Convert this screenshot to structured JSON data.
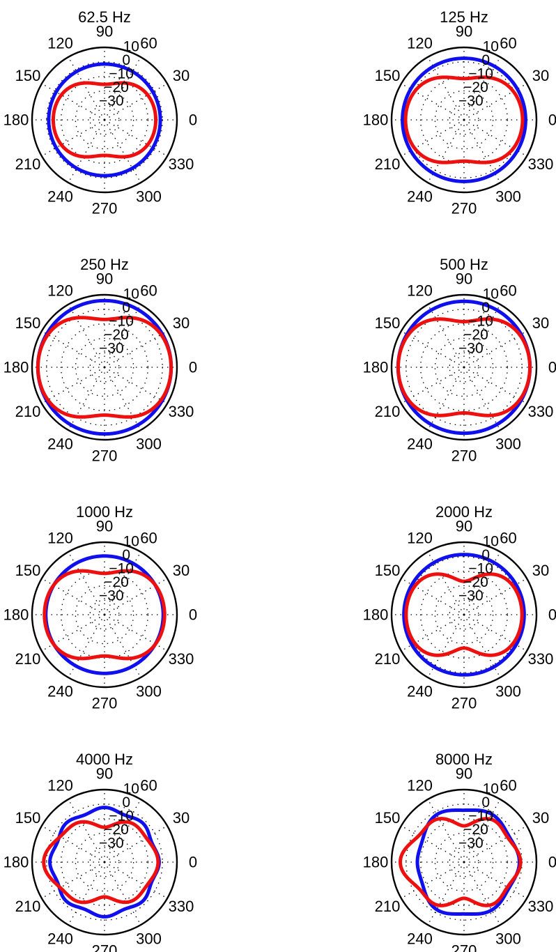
{
  "chart_data": [
    {
      "type": "polar",
      "title": "62.5 Hz",
      "angle_ticks_deg": [
        0,
        30,
        60,
        90,
        120,
        150,
        180,
        210,
        240,
        270,
        300,
        330
      ],
      "radial_ticks": [
        "10",
        "0",
        "−10",
        "−20",
        "−30"
      ],
      "rlim": [
        -40,
        10
      ],
      "grid": true,
      "series": [
        {
          "color": "#1010ee",
          "level": -1.5,
          "dip": 0,
          "dip_width": 30,
          "lobe": 0,
          "lobe_angle": 180,
          "lobe_width": 40,
          "ripple": 0,
          "ripple_order": 8
        },
        {
          "color": "#ee0f0f",
          "level": -4.5,
          "dip": 11,
          "dip_width": 28,
          "lobe": 0,
          "lobe_angle": 180,
          "lobe_width": 40,
          "ripple": 0,
          "ripple_order": 8
        }
      ]
    },
    {
      "type": "polar",
      "title": "125 Hz",
      "angle_ticks_deg": [
        0,
        30,
        60,
        90,
        120,
        150,
        180,
        210,
        240,
        270,
        300,
        330
      ],
      "radial_ticks": [
        "10",
        "0",
        "−10",
        "−20",
        "−30"
      ],
      "rlim": [
        -40,
        10
      ],
      "grid": true,
      "series": [
        {
          "color": "#1010ee",
          "level": 2.5,
          "dip": 0,
          "dip_width": 30,
          "lobe": 0,
          "lobe_angle": 180,
          "lobe_width": 40,
          "ripple": 0,
          "ripple_order": 8
        },
        {
          "color": "#ee0f0f",
          "level": 0.5,
          "dip": 12,
          "dip_width": 28,
          "lobe": 0,
          "lobe_angle": 180,
          "lobe_width": 40,
          "ripple": 0,
          "ripple_order": 8
        }
      ]
    },
    {
      "type": "polar",
      "title": "250 Hz",
      "angle_ticks_deg": [
        0,
        30,
        60,
        90,
        120,
        150,
        180,
        210,
        240,
        270,
        300,
        330
      ],
      "radial_ticks": [
        "10",
        "0",
        "−10",
        "−20",
        "−30"
      ],
      "rlim": [
        -40,
        10
      ],
      "grid": true,
      "series": [
        {
          "color": "#1010ee",
          "level": 6,
          "dip": 0,
          "dip_width": 30,
          "lobe": 0,
          "lobe_angle": 180,
          "lobe_width": 40,
          "ripple": 0,
          "ripple_order": 8
        },
        {
          "color": "#ee0f0f",
          "level": 6,
          "dip": 13,
          "dip_width": 26,
          "lobe": 0,
          "lobe_angle": 180,
          "lobe_width": 40,
          "ripple": 0,
          "ripple_order": 8
        }
      ]
    },
    {
      "type": "polar",
      "title": "500 Hz",
      "angle_ticks_deg": [
        0,
        30,
        60,
        90,
        120,
        150,
        180,
        210,
        240,
        270,
        300,
        330
      ],
      "radial_ticks": [
        "10",
        "0",
        "−10",
        "−20",
        "−30"
      ],
      "rlim": [
        -40,
        10
      ],
      "grid": true,
      "series": [
        {
          "color": "#1010ee",
          "level": 5.5,
          "dip": 0,
          "dip_width": 30,
          "lobe": 0,
          "lobe_angle": 180,
          "lobe_width": 40,
          "ripple": 0,
          "ripple_order": 8
        },
        {
          "color": "#ee0f0f",
          "level": 5.5,
          "dip": 14,
          "dip_width": 26,
          "lobe": 0,
          "lobe_angle": 180,
          "lobe_width": 40,
          "ripple": 0,
          "ripple_order": 8
        }
      ]
    },
    {
      "type": "polar",
      "title": "1000 Hz",
      "angle_ticks_deg": [
        0,
        30,
        60,
        90,
        120,
        150,
        180,
        210,
        240,
        270,
        300,
        330
      ],
      "radial_ticks": [
        "10",
        "0",
        "−10",
        "−20",
        "−30"
      ],
      "rlim": [
        -40,
        10
      ],
      "grid": true,
      "series": [
        {
          "color": "#1010ee",
          "level": 0.5,
          "dip": 0,
          "dip_width": 30,
          "lobe": 0,
          "lobe_angle": 180,
          "lobe_width": 40,
          "ripple": 0,
          "ripple_order": 8
        },
        {
          "color": "#ee0f0f",
          "level": 1.5,
          "dip": 13,
          "dip_width": 26,
          "lobe": 0,
          "lobe_angle": 180,
          "lobe_width": 40,
          "ripple": 0,
          "ripple_order": 8
        }
      ]
    },
    {
      "type": "polar",
      "title": "2000 Hz",
      "angle_ticks_deg": [
        0,
        30,
        60,
        90,
        120,
        150,
        180,
        210,
        240,
        270,
        300,
        330
      ],
      "radial_ticks": [
        "10",
        "0",
        "−10",
        "−20",
        "−30"
      ],
      "rlim": [
        -40,
        10
      ],
      "grid": true,
      "series": [
        {
          "color": "#1010ee",
          "level": 1.5,
          "dip": 0,
          "dip_width": 30,
          "lobe": 0,
          "lobe_angle": 180,
          "lobe_width": 40,
          "ripple": 0,
          "ripple_order": 8
        },
        {
          "color": "#ee0f0f",
          "level": 0,
          "dip": 17,
          "dip_width": 24,
          "lobe": 0,
          "lobe_angle": 180,
          "lobe_width": 40,
          "ripple": 0,
          "ripple_order": 8
        }
      ]
    },
    {
      "type": "polar",
      "title": "4000 Hz",
      "angle_ticks_deg": [
        0,
        30,
        60,
        90,
        120,
        150,
        180,
        210,
        240,
        270,
        300,
        330
      ],
      "radial_ticks": [
        "10",
        "0",
        "−10",
        "−20",
        "−30"
      ],
      "rlim": [
        -40,
        10
      ],
      "grid": true,
      "series": [
        {
          "color": "#1010ee",
          "level": -3.5,
          "dip": 0,
          "dip_width": 30,
          "lobe": 0,
          "lobe_angle": 180,
          "lobe_width": 40,
          "ripple": 1.2,
          "ripple_order": 8
        },
        {
          "color": "#ee0f0f",
          "level": -4.5,
          "dip": 10,
          "dip_width": 26,
          "lobe": 5,
          "lobe_angle": 180,
          "lobe_width": 22,
          "ripple": 1.5,
          "ripple_order": 6
        }
      ]
    },
    {
      "type": "polar",
      "title": "8000 Hz",
      "angle_ticks_deg": [
        0,
        30,
        60,
        90,
        120,
        150,
        180,
        210,
        240,
        270,
        300,
        330
      ],
      "radial_ticks": [
        "10",
        "0",
        "−10",
        "−20",
        "−30"
      ],
      "rlim": [
        -40,
        10
      ],
      "grid": true,
      "series": [
        {
          "color": "#1010ee",
          "level": -3,
          "dip": 0,
          "dip_width": 30,
          "lobe": -6,
          "lobe_angle": 180,
          "lobe_width": 26,
          "ripple": 1.2,
          "ripple_order": 6
        },
        {
          "color": "#ee0f0f",
          "level": -3,
          "dip": 10,
          "dip_width": 24,
          "lobe": 5,
          "lobe_angle": 180,
          "lobe_width": 20,
          "ripple": 2,
          "ripple_order": 6
        }
      ]
    }
  ]
}
